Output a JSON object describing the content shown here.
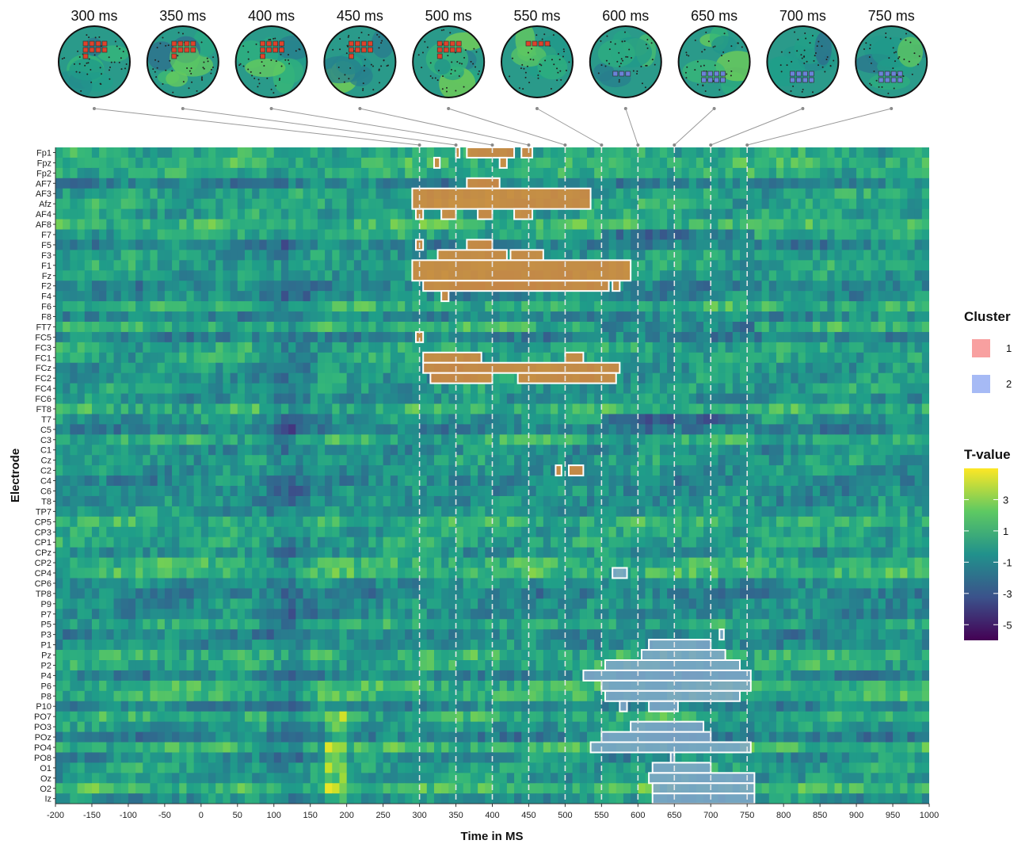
{
  "chart_data": {
    "type": "heatmap",
    "xlabel": "Time in MS",
    "ylabel": "Electrode",
    "xlim": [
      -200,
      1000
    ],
    "x_ticks": [
      -200,
      -150,
      -100,
      -50,
      0,
      50,
      100,
      150,
      200,
      250,
      300,
      350,
      400,
      450,
      500,
      550,
      600,
      650,
      700,
      750,
      800,
      850,
      900,
      950,
      1000
    ],
    "electrodes": [
      "Fp1",
      "Fpz",
      "Fp2",
      "AF7",
      "AF3",
      "Afz",
      "AF4",
      "AF8",
      "F7",
      "F5",
      "F3",
      "F1",
      "Fz",
      "F2",
      "F4",
      "F6",
      "F8",
      "FT7",
      "FC5",
      "FC3",
      "FC1",
      "FCz",
      "FC2",
      "FC4",
      "FC6",
      "FT8",
      "T7",
      "C5",
      "C3",
      "C1",
      "Cz",
      "C2",
      "C4",
      "C6",
      "T8",
      "TP7",
      "CP5",
      "CP3",
      "CP1",
      "CPz",
      "CP2",
      "CP4",
      "CP6",
      "TP8",
      "P9",
      "P7",
      "P5",
      "P3",
      "P1",
      "Pz",
      "P2",
      "P4",
      "P6",
      "P8",
      "P10",
      "PO7",
      "PO3",
      "POz",
      "PO4",
      "PO8",
      "O1",
      "Oz",
      "O2",
      "Iz"
    ],
    "topoplot_times": [
      "300 ms",
      "350 ms",
      "400 ms",
      "450 ms",
      "500 ms",
      "550 ms",
      "600 ms",
      "650 ms",
      "700 ms",
      "750 ms"
    ],
    "topoplot_time_values": [
      300,
      350,
      400,
      450,
      500,
      550,
      600,
      650,
      700,
      750
    ],
    "colorbar": {
      "title": "T-value",
      "ticks": [
        3,
        1,
        -1,
        -3,
        -5
      ],
      "tick_labels": [
        "3",
        "1",
        "-1",
        "-3",
        "-5"
      ],
      "range": [
        -6,
        5
      ],
      "colors": [
        "#440154",
        "#3b528b",
        "#21918c",
        "#5ec962",
        "#fde725"
      ]
    },
    "cluster_legend": {
      "title": "Cluster",
      "items": [
        {
          "label": "1",
          "color": "#f8a0a0"
        },
        {
          "label": "2",
          "color": "#a6baf5"
        }
      ]
    },
    "clusters": [
      {
        "cluster": "1",
        "color": "#d98a3e",
        "regions": [
          {
            "electrodes": [
              "Fp1"
            ],
            "t": [
              350,
              355
            ]
          },
          {
            "electrodes": [
              "Fp1"
            ],
            "t": [
              365,
              430
            ]
          },
          {
            "electrodes": [
              "Fp1"
            ],
            "t": [
              440,
              455
            ]
          },
          {
            "electrodes": [
              "Fpz"
            ],
            "t": [
              320,
              328
            ]
          },
          {
            "electrodes": [
              "Fpz"
            ],
            "t": [
              410,
              420
            ]
          },
          {
            "electrodes": [
              "AF7"
            ],
            "t": [
              365,
              410
            ]
          },
          {
            "electrodes": [
              "AF3",
              "Afz"
            ],
            "t": [
              290,
              535
            ]
          },
          {
            "electrodes": [
              "AF4"
            ],
            "t": [
              295,
              305
            ]
          },
          {
            "electrodes": [
              "AF4"
            ],
            "t": [
              330,
              350
            ]
          },
          {
            "electrodes": [
              "AF4"
            ],
            "t": [
              380,
              400
            ]
          },
          {
            "electrodes": [
              "AF4"
            ],
            "t": [
              430,
              455
            ]
          },
          {
            "electrodes": [
              "F5"
            ],
            "t": [
              295,
              305
            ]
          },
          {
            "electrodes": [
              "F5"
            ],
            "t": [
              365,
              400
            ]
          },
          {
            "electrodes": [
              "F3"
            ],
            "t": [
              325,
              420
            ]
          },
          {
            "electrodes": [
              "F3"
            ],
            "t": [
              425,
              470
            ]
          },
          {
            "electrodes": [
              "F1",
              "Fz"
            ],
            "t": [
              290,
              590
            ]
          },
          {
            "electrodes": [
              "F2"
            ],
            "t": [
              305,
              560
            ]
          },
          {
            "electrodes": [
              "F2"
            ],
            "t": [
              565,
              575
            ]
          },
          {
            "electrodes": [
              "F4"
            ],
            "t": [
              330,
              340
            ]
          },
          {
            "electrodes": [
              "FC5"
            ],
            "t": [
              295,
              305
            ]
          },
          {
            "electrodes": [
              "FC1"
            ],
            "t": [
              305,
              385
            ]
          },
          {
            "electrodes": [
              "FC1"
            ],
            "t": [
              500,
              525
            ]
          },
          {
            "electrodes": [
              "FCz"
            ],
            "t": [
              305,
              575
            ]
          },
          {
            "electrodes": [
              "FC2"
            ],
            "t": [
              315,
              400
            ]
          },
          {
            "electrodes": [
              "FC2"
            ],
            "t": [
              435,
              570
            ]
          },
          {
            "electrodes": [
              "C2"
            ],
            "t": [
              487,
              495
            ]
          },
          {
            "electrodes": [
              "C2"
            ],
            "t": [
              505,
              525
            ]
          }
        ]
      },
      {
        "cluster": "2",
        "color": "#7fa6c8",
        "regions": [
          {
            "electrodes": [
              "CP4"
            ],
            "t": [
              565,
              585
            ]
          },
          {
            "electrodes": [
              "P3"
            ],
            "t": [
              712,
              718
            ]
          },
          {
            "electrodes": [
              "P1"
            ],
            "t": [
              615,
              700
            ]
          },
          {
            "electrodes": [
              "Pz"
            ],
            "t": [
              605,
              720
            ]
          },
          {
            "electrodes": [
              "P2"
            ],
            "t": [
              555,
              740
            ]
          },
          {
            "electrodes": [
              "P4"
            ],
            "t": [
              525,
              755
            ]
          },
          {
            "electrodes": [
              "P6"
            ],
            "t": [
              550,
              755
            ]
          },
          {
            "electrodes": [
              "P8"
            ],
            "t": [
              555,
              740
            ]
          },
          {
            "electrodes": [
              "P10"
            ],
            "t": [
              575,
              585
            ]
          },
          {
            "electrodes": [
              "P10"
            ],
            "t": [
              615,
              655
            ]
          },
          {
            "electrodes": [
              "PO3"
            ],
            "t": [
              590,
              690
            ]
          },
          {
            "electrodes": [
              "POz"
            ],
            "t": [
              550,
              700
            ]
          },
          {
            "electrodes": [
              "PO4"
            ],
            "t": [
              535,
              755
            ]
          },
          {
            "electrodes": [
              "PO8"
            ],
            "t": [
              645,
              650
            ]
          },
          {
            "electrodes": [
              "O1"
            ],
            "t": [
              620,
              700
            ]
          },
          {
            "electrodes": [
              "Oz"
            ],
            "t": [
              615,
              760
            ]
          },
          {
            "electrodes": [
              "O2"
            ],
            "t": [
              620,
              760
            ]
          },
          {
            "electrodes": [
              "Iz"
            ],
            "t": [
              620,
              760
            ]
          }
        ]
      }
    ],
    "dashed_reference_lines": [
      300,
      350,
      400,
      450,
      500,
      550,
      600,
      650,
      700,
      750
    ],
    "grid": false,
    "legend_position": "right"
  }
}
